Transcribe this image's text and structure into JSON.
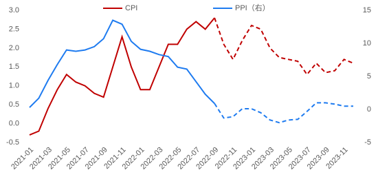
{
  "chart_data": {
    "type": "line",
    "categories": [
      "2021-01",
      null,
      "2021-03",
      null,
      "2021-05",
      null,
      "2021-07",
      null,
      "2021-09",
      null,
      "2021-11",
      null,
      "2022-01",
      null,
      "2022-03",
      null,
      "2022-05",
      null,
      "2022-07",
      null,
      "2022-09",
      null,
      "2022-11",
      null,
      "2023-01",
      null,
      "2023-03",
      null,
      "2023-05",
      null,
      "2023-07",
      null,
      "2023-09",
      null,
      "2023-11",
      null
    ],
    "series": [
      {
        "name": "CPI",
        "color": "#c00000",
        "axis": "y",
        "dashed_from": 21,
        "values": [
          -0.3,
          -0.2,
          0.4,
          0.9,
          1.3,
          1.1,
          1.0,
          0.8,
          0.7,
          1.5,
          2.3,
          1.5,
          0.9,
          0.9,
          1.5,
          2.1,
          2.1,
          2.5,
          2.7,
          2.5,
          2.8,
          2.1,
          1.7,
          2.2,
          2.6,
          2.5,
          2.0,
          1.75,
          1.7,
          1.65,
          1.3,
          1.6,
          1.35,
          1.4,
          1.7,
          1.6
        ]
      },
      {
        "name": "PPI（右）",
        "color": "#1e7bf0",
        "axis": "y2",
        "dashed_from": 21,
        "values": [
          0.3,
          1.7,
          4.4,
          6.8,
          9.0,
          8.8,
          9.0,
          9.5,
          10.7,
          13.5,
          12.9,
          10.3,
          9.1,
          8.8,
          8.3,
          8.0,
          6.4,
          6.1,
          4.2,
          2.3,
          0.9,
          -1.3,
          -1.1,
          0.1,
          0.1,
          -0.5,
          -1.6,
          -2.0,
          -1.6,
          -1.5,
          -0.3,
          1.0,
          1.0,
          0.8,
          0.5,
          0.5
        ]
      }
    ],
    "ylim": [
      -0.5,
      3.0
    ],
    "yticks": [
      -0.5,
      {
        "value": 0,
        "label": "0.0"
      },
      0.5,
      {
        "value": 1,
        "label": "1.0"
      },
      1.5,
      {
        "value": 2,
        "label": "2.0"
      },
      2.5,
      {
        "value": 3,
        "label": "3.0"
      }
    ],
    "y2lim": [
      -5,
      15
    ],
    "y2ticks": [
      -5,
      0,
      5,
      10,
      15
    ],
    "grid": false,
    "legend": "top"
  }
}
